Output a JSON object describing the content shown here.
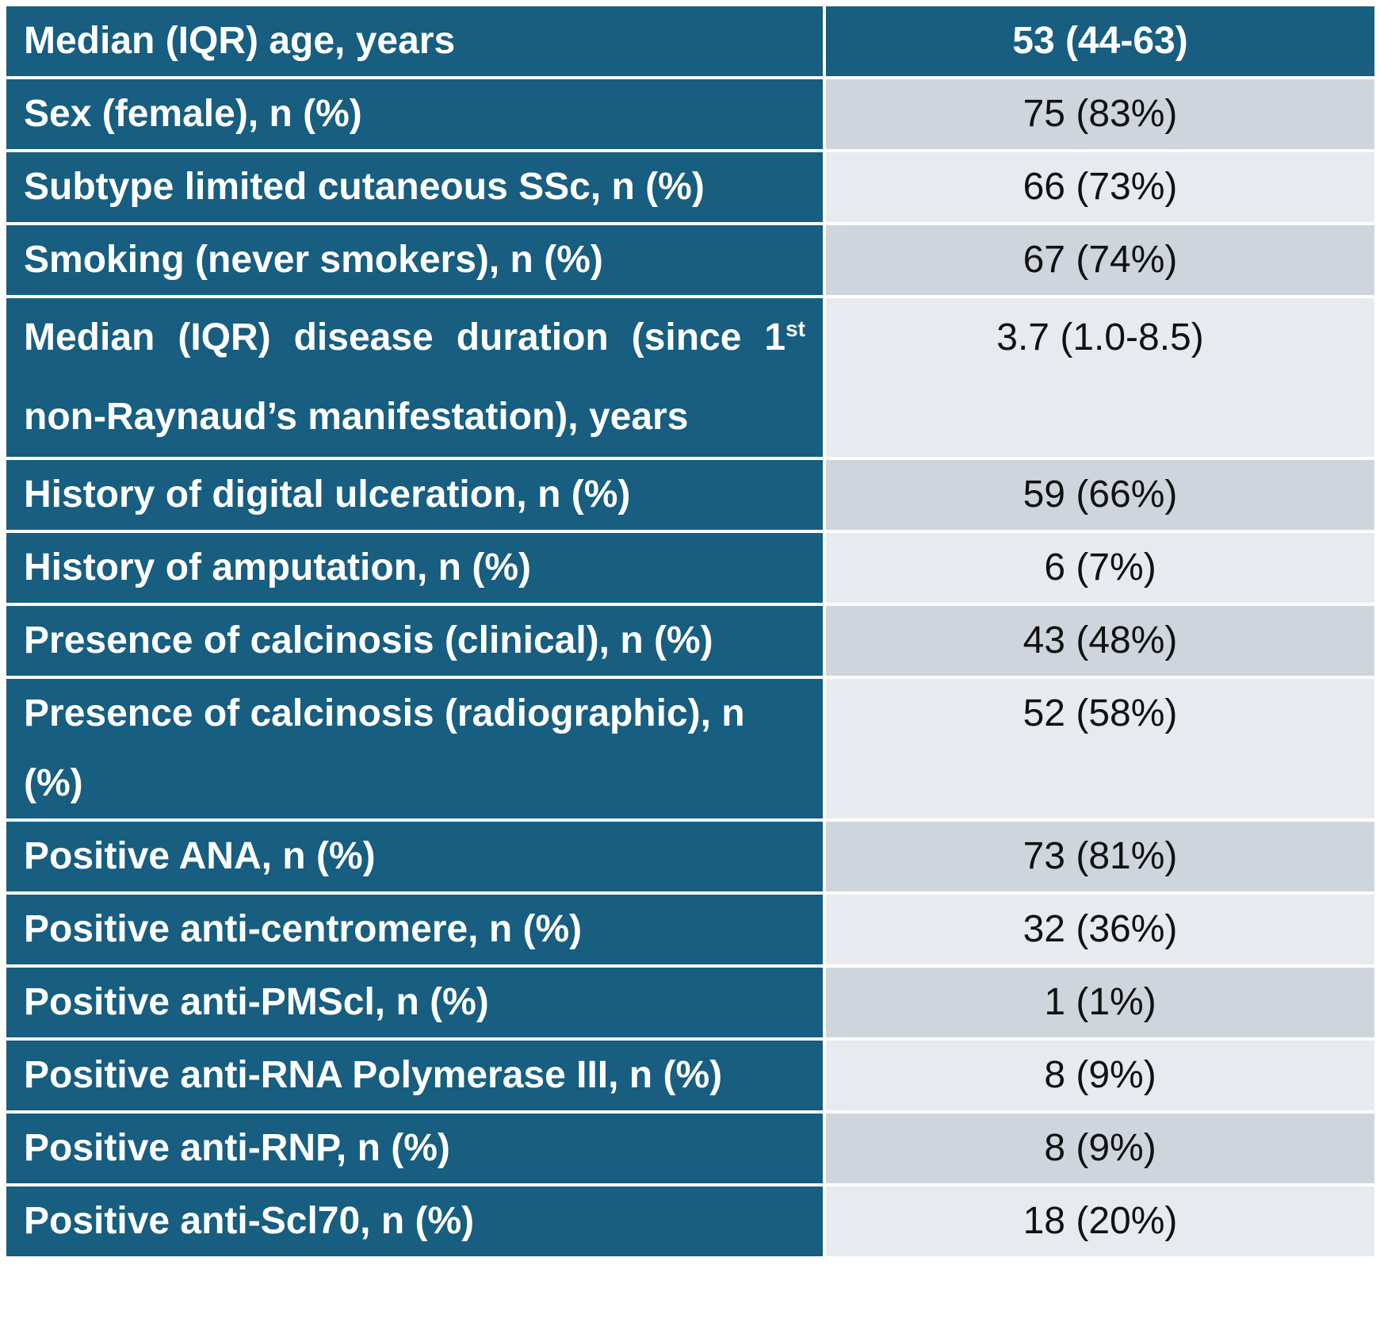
{
  "rows": [
    {
      "label": "Median (IQR) age, years",
      "value": "53 (44-63)",
      "style": "header"
    },
    {
      "label": "Sex (female), n (%)",
      "value": "75 (83%)",
      "style": "shade-dark"
    },
    {
      "label": "Subtype limited cutaneous SSc, n (%)",
      "value": "66 (73%)",
      "style": "shade-light"
    },
    {
      "label": "Smoking (never smokers), n (%)",
      "value": "67 (74%)",
      "style": "shade-dark"
    },
    {
      "label_part1": "Median (IQR) disease duration (since 1",
      "label_sup": "st",
      "label_part2": " non-Raynaud’s manifestation), years",
      "value": "3.7 (1.0-8.5)",
      "style": "shade-light"
    },
    {
      "label": "History of digital ulceration, n (%)",
      "value": "59 (66%)",
      "style": "shade-dark"
    },
    {
      "label": "History of amputation, n (%)",
      "value": "6 (7%)",
      "style": "shade-light"
    },
    {
      "label": "Presence of calcinosis (clinical), n (%)",
      "value": "43 (48%)",
      "style": "shade-dark"
    },
    {
      "label": "Presence of calcinosis (radiographic), n (%)",
      "value": "52 (58%)",
      "style": "shade-light"
    },
    {
      "label": "Positive ANA, n (%)",
      "value": "73 (81%)",
      "style": "shade-dark"
    },
    {
      "label": "Positive anti-centromere, n (%)",
      "value": "32 (36%)",
      "style": "shade-light"
    },
    {
      "label": "Positive anti-PMScl, n (%)",
      "value": "1 (1%)",
      "style": "shade-dark"
    },
    {
      "label": "Positive anti-RNA Polymerase III, n (%)",
      "value": "8 (9%)",
      "style": "shade-light"
    },
    {
      "label": "Positive anti-RNP, n (%)",
      "value": "8 (9%)",
      "style": "shade-dark"
    },
    {
      "label": "Positive anti-Scl70, n (%)",
      "value": "18 (20%)",
      "style": "shade-light"
    }
  ],
  "colors": {
    "header_blue": "#175e80",
    "shade_dark": "#cfd5dc",
    "shade_light": "#e7eaee"
  }
}
